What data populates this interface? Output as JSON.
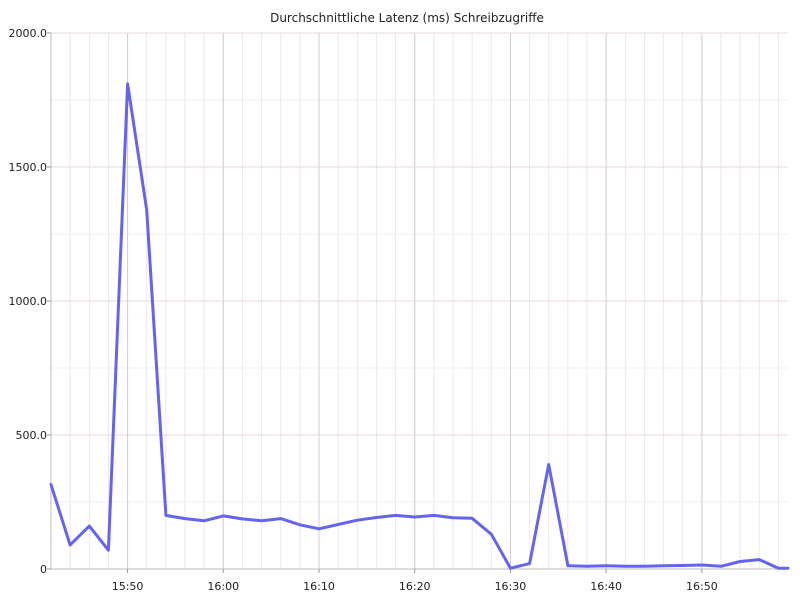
{
  "chart_data": {
    "type": "line",
    "title": "Durchschnittliche Latenz (ms) Schreibzugriffe",
    "xlabel": "",
    "ylabel": "",
    "x_tick_labels": [
      "15:50",
      "16:00",
      "16:10",
      "16:20",
      "16:30",
      "16:40",
      "16:50"
    ],
    "y_tick_labels": [
      "0",
      "500.0",
      "1000.0",
      "1500.0",
      "2000.0"
    ],
    "ylim": [
      0,
      2000
    ],
    "xlim": [
      "15:42",
      "16:59"
    ],
    "grid": true,
    "series": [
      {
        "name": "",
        "color": "#6464f0",
        "x": [
          "15:42",
          "15:44",
          "15:46",
          "15:48",
          "15:50",
          "15:52",
          "15:54",
          "15:56",
          "15:58",
          "16:00",
          "16:02",
          "16:04",
          "16:06",
          "16:08",
          "16:10",
          "16:12",
          "16:14",
          "16:16",
          "16:18",
          "16:20",
          "16:22",
          "16:24",
          "16:26",
          "16:28",
          "16:30",
          "16:32",
          "16:34",
          "16:36",
          "16:38",
          "16:40",
          "16:42",
          "16:44",
          "16:46",
          "16:48",
          "16:50",
          "16:52",
          "16:54",
          "16:56",
          "16:58",
          "16:59"
        ],
        "values": [
          315,
          90,
          160,
          70,
          1810,
          1340,
          200,
          188,
          180,
          198,
          187,
          180,
          188,
          165,
          150,
          166,
          182,
          192,
          200,
          194,
          200,
          191,
          189,
          130,
          3,
          20,
          390,
          12,
          10,
          12,
          10,
          10,
          12,
          13,
          15,
          10,
          28,
          35,
          3,
          3
        ]
      }
    ]
  }
}
